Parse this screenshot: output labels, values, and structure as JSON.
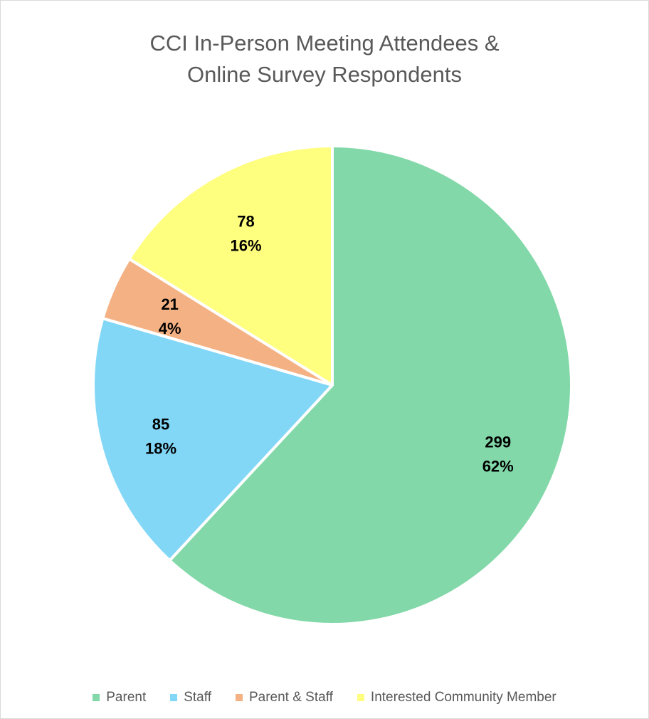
{
  "chart_data": {
    "type": "pie",
    "title_lines": [
      "CCI In-Person Meeting Attendees &",
      "Online Survey Respondents"
    ],
    "categories": [
      "Parent",
      "Staff",
      "Parent & Staff",
      "Interested Community Member"
    ],
    "values": [
      299,
      85,
      21,
      78
    ],
    "percent_labels": [
      "62%",
      "18%",
      "4%",
      "16%"
    ],
    "value_labels": [
      "299",
      "85",
      "21",
      "78"
    ],
    "colors": [
      "#82D8A8",
      "#82D7F7",
      "#F4B183",
      "#FFFF7F"
    ],
    "start_angle": "12 o'clock",
    "direction": "clockwise",
    "legend": "bottom"
  }
}
